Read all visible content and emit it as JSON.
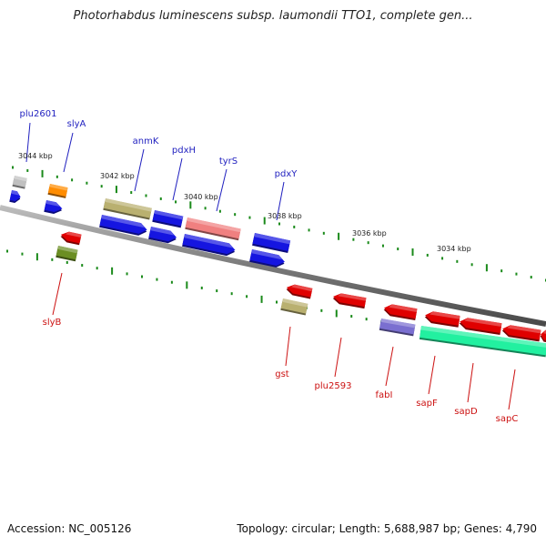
{
  "title": "Photorhabdus luminescens subsp. laumondii TTO1, complete gen...",
  "footer": {
    "accession": "Accession: NC_005126",
    "summary": "Topology: circular; Length: 5,688,987 bp; Genes: 4,790"
  },
  "colors": {
    "upper_label": "#1f1fbf",
    "lower_label": "#cc1111",
    "backbone": "#7a7a7a",
    "tick": "#1a8a1a",
    "gene_blue": "#1515e0",
    "gene_red": "#e00000",
    "gene_khaki": "#b9b070",
    "gene_salmon": "#f08080",
    "gene_orange": "#ff8c00",
    "gene_olive": "#6b8e23",
    "gene_purple": "#7a6fd0",
    "gene_aqua": "#22f0a0",
    "gene_gray": "#c0c0c0"
  },
  "scale_labels": [
    "3044 kbp",
    "3042 kbp",
    "3040 kbp",
    "3038 kbp",
    "3036 kbp",
    "3034 kbp"
  ],
  "upper_genes": [
    "plu2601",
    "slyA",
    "anmK",
    "pdxH",
    "tyrS",
    "pdxY"
  ],
  "lower_genes": [
    "slyB",
    "gst",
    "plu2593",
    "fabI",
    "sapF",
    "sapD",
    "sapC"
  ]
}
